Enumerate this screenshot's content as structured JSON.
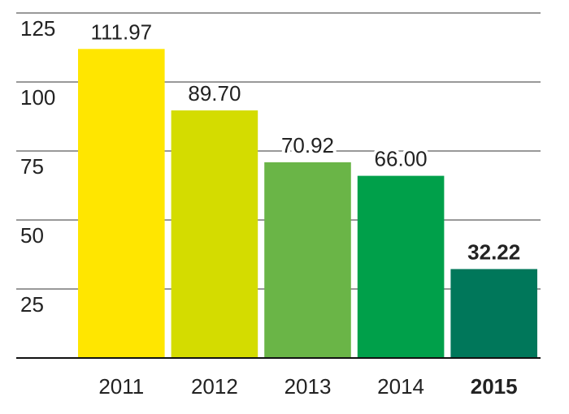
{
  "chart_data": {
    "type": "bar",
    "categories": [
      "2011",
      "2012",
      "2013",
      "2014",
      "2015"
    ],
    "values": [
      111.97,
      89.7,
      70.92,
      66.0,
      32.22
    ],
    "value_labels": [
      "111.97",
      "89.70",
      "70.92",
      "66.00",
      "32.22"
    ],
    "colors": [
      "#ffe600",
      "#d4dc00",
      "#6ab547",
      "#00a04a",
      "#00775a"
    ],
    "ylim": [
      0,
      125
    ],
    "yticks": [
      25,
      50,
      75,
      100,
      125
    ],
    "grid": true
  }
}
